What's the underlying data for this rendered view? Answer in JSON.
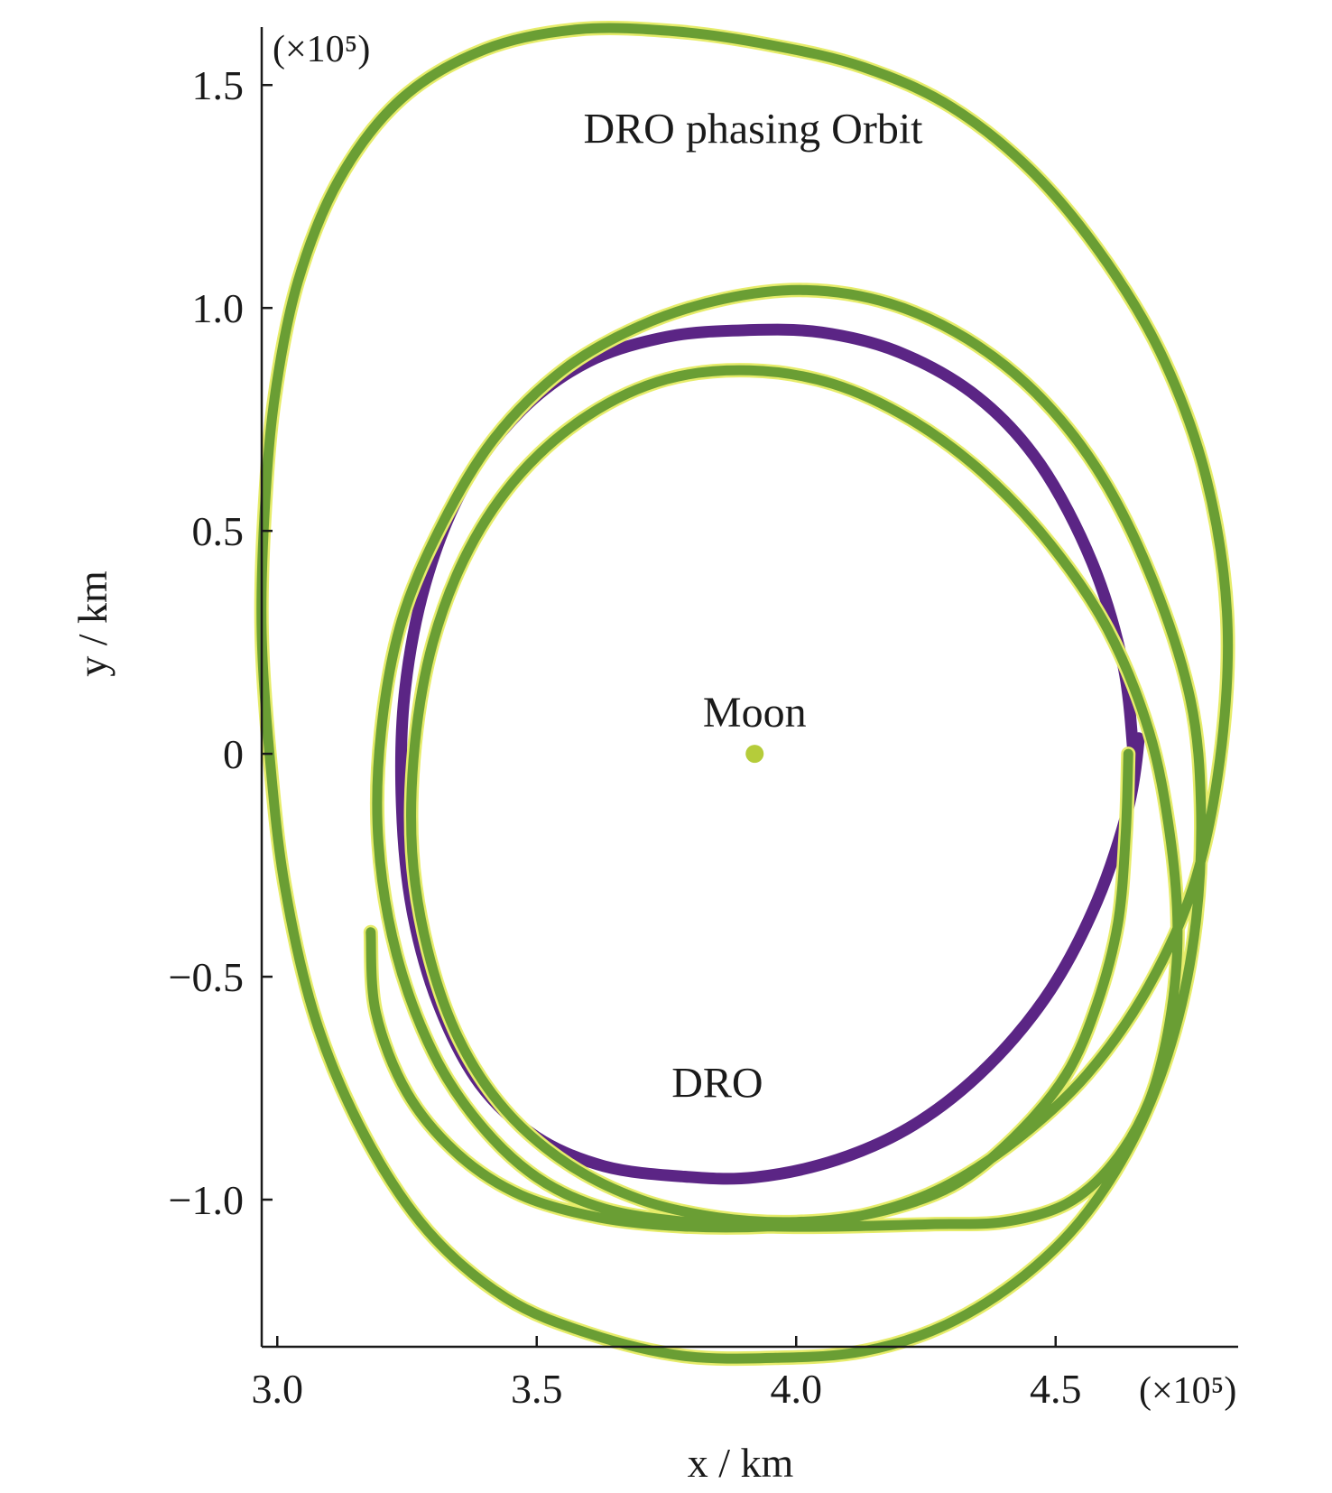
{
  "chart_data": {
    "type": "line",
    "title": "",
    "xlabel": "x / km",
    "ylabel": "y / km",
    "xlim": [
      2.97,
      4.85
    ],
    "ylim": [
      -1.33,
      1.63
    ],
    "x_ticks": [
      {
        "value": 3.0,
        "label": "3.0"
      },
      {
        "value": 3.5,
        "label": "3.5"
      },
      {
        "value": 4.0,
        "label": "4.0"
      },
      {
        "value": 4.5,
        "label": "4.5"
      }
    ],
    "y_ticks": [
      {
        "value": 1.5,
        "label": "1.5"
      },
      {
        "value": 1.0,
        "label": "1.0"
      },
      {
        "value": 0.5,
        "label": "0.5"
      },
      {
        "value": 0,
        "label": "0"
      },
      {
        "value": -0.5,
        "label": "−0.5"
      },
      {
        "value": -1.0,
        "label": "−1.0"
      }
    ],
    "x_scale_note": "(×10⁵)",
    "y_scale_note": "(×10⁵)",
    "grid": false,
    "colors": {
      "phasing": "#6a9e34",
      "dro": "#5b2585",
      "moon": "#b5cc3a",
      "phasing_edge": "#e6ec6a"
    },
    "series": [
      {
        "key": "dro",
        "color": "#5b2585",
        "x": [
          4.65,
          4.63,
          4.57,
          4.47,
          4.35,
          4.2,
          4.05,
          3.9,
          3.75,
          3.6,
          3.47,
          3.36,
          3.285,
          3.245,
          3.24,
          3.26,
          3.31,
          3.39,
          3.5,
          3.63,
          3.78,
          3.92,
          4.08,
          4.23,
          4.37,
          4.49,
          4.58,
          4.64,
          4.66,
          4.65
        ],
        "y": [
          0.0,
          0.2,
          0.43,
          0.65,
          0.8,
          0.9,
          0.945,
          0.95,
          0.935,
          0.88,
          0.77,
          0.6,
          0.38,
          0.13,
          -0.12,
          -0.35,
          -0.56,
          -0.74,
          -0.86,
          -0.925,
          -0.948,
          -0.95,
          -0.91,
          -0.83,
          -0.7,
          -0.53,
          -0.33,
          -0.12,
          0.03,
          0.0
        ]
      },
      {
        "key": "phasing",
        "name": "DRO phasing Orbit",
        "color": "#6a9e34",
        "x": [
          4.64,
          4.635,
          4.62,
          4.58,
          4.52,
          4.42,
          4.3,
          4.15,
          4.0,
          3.85,
          3.7,
          3.56,
          3.44,
          3.35,
          3.29,
          3.26,
          3.265,
          3.3,
          3.37,
          3.47,
          3.6,
          3.75,
          3.91,
          4.07,
          4.22,
          4.36,
          4.49,
          4.6,
          4.68,
          4.72,
          4.735,
          4.72,
          4.68,
          4.61,
          4.52,
          4.4,
          4.26,
          4.1,
          3.95,
          3.79,
          3.63,
          3.5,
          3.39,
          3.3,
          3.23,
          3.195,
          3.2,
          3.24,
          3.32,
          3.42,
          3.55,
          3.7,
          3.86,
          4.02,
          4.18,
          4.33,
          4.47,
          4.59,
          4.69,
          4.76,
          4.78,
          4.77,
          4.73,
          4.66,
          4.56,
          4.44,
          4.29,
          4.13,
          3.96,
          3.78,
          3.6,
          3.44,
          3.29,
          3.17,
          3.075,
          3.015,
          2.985,
          2.97,
          2.975,
          2.995,
          3.04,
          3.12,
          3.24,
          3.4,
          3.58,
          3.77,
          3.95,
          4.13,
          4.3,
          4.46,
          4.6,
          4.71,
          4.79,
          4.83,
          4.82,
          4.77,
          4.68,
          4.56,
          4.42,
          4.27,
          4.11,
          3.95,
          3.78,
          3.62,
          3.47,
          3.35,
          3.25,
          3.19,
          3.18
        ],
        "y": [
          0.0,
          -0.18,
          -0.38,
          -0.56,
          -0.72,
          -0.86,
          -0.97,
          -1.03,
          -1.05,
          -1.04,
          -1.0,
          -0.92,
          -0.8,
          -0.64,
          -0.44,
          -0.22,
          0.02,
          0.25,
          0.46,
          0.63,
          0.76,
          0.84,
          0.86,
          0.83,
          0.75,
          0.63,
          0.47,
          0.28,
          0.05,
          -0.18,
          -0.4,
          -0.6,
          -0.78,
          -0.92,
          -1.01,
          -1.05,
          -1.055,
          -1.06,
          -1.06,
          -1.05,
          -1.02,
          -0.95,
          -0.83,
          -0.67,
          -0.45,
          -0.2,
          0.05,
          0.3,
          0.52,
          0.71,
          0.86,
          0.96,
          1.02,
          1.04,
          1.01,
          0.93,
          0.8,
          0.62,
          0.38,
          0.12,
          -0.12,
          -0.38,
          -0.62,
          -0.84,
          -1.03,
          -1.17,
          -1.28,
          -1.34,
          -1.355,
          -1.35,
          -1.3,
          -1.22,
          -1.07,
          -0.86,
          -0.6,
          -0.3,
          0.0,
          0.27,
          0.53,
          0.8,
          1.06,
          1.29,
          1.47,
          1.58,
          1.625,
          1.62,
          1.59,
          1.54,
          1.45,
          1.3,
          1.1,
          0.88,
          0.62,
          0.32,
          0.02,
          -0.28,
          -0.52,
          -0.72,
          -0.87,
          -0.98,
          -1.04,
          -1.06,
          -1.06,
          -1.04,
          -0.99,
          -0.9,
          -0.76,
          -0.58,
          -0.4
        ]
      }
    ],
    "moon": {
      "x": 3.92,
      "y": 0.0,
      "label": "Moon"
    },
    "annotations": [
      {
        "key": "phasing",
        "text": "DRO phasing Orbit",
        "x": 3.59,
        "y": 1.37
      },
      {
        "key": "dro",
        "text": "DRO",
        "x": 3.76,
        "y": -0.77
      }
    ]
  }
}
